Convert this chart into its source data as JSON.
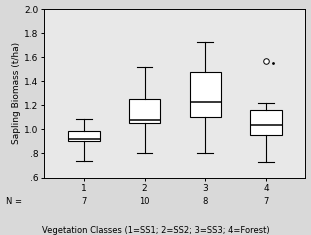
{
  "title": "",
  "ylabel": "Sapling Biomass (t/ha)",
  "xlabel": "Vegetation Classes (1=SS1; 2=SS2; 3=SS3; 4=Forest)",
  "ylim": [
    0.6,
    2.0
  ],
  "yticks": [
    0.6,
    0.8,
    1.0,
    1.2,
    1.4,
    1.6,
    1.8,
    2.0
  ],
  "ytick_labels": [
    ".6",
    ".8",
    "1.0",
    "1.2",
    "1.4",
    "1.6",
    "1.8",
    "2.0"
  ],
  "categories": [
    1,
    2,
    3,
    4
  ],
  "n_labels": [
    "7",
    "10",
    "8",
    "7"
  ],
  "boxes": [
    {
      "whislo": 0.74,
      "q1": 0.905,
      "med": 0.92,
      "q3": 0.985,
      "whishi": 1.09,
      "fliers": []
    },
    {
      "whislo": 0.8,
      "q1": 1.055,
      "med": 1.075,
      "q3": 1.255,
      "whishi": 1.52,
      "fliers": []
    },
    {
      "whislo": 0.8,
      "q1": 1.1,
      "med": 1.225,
      "q3": 1.48,
      "whishi": 1.73,
      "fliers": []
    },
    {
      "whislo": 0.73,
      "q1": 0.955,
      "med": 1.04,
      "q3": 1.16,
      "whishi": 1.22,
      "fliers": [
        1.57
      ]
    }
  ],
  "background_color": "#d9d9d9",
  "plot_bg_color": "#e8e8e8",
  "box_facecolor": "white",
  "box_edgecolor": "black",
  "linewidth": 0.8,
  "box_width": 0.52,
  "xlim": [
    0.35,
    4.65
  ]
}
